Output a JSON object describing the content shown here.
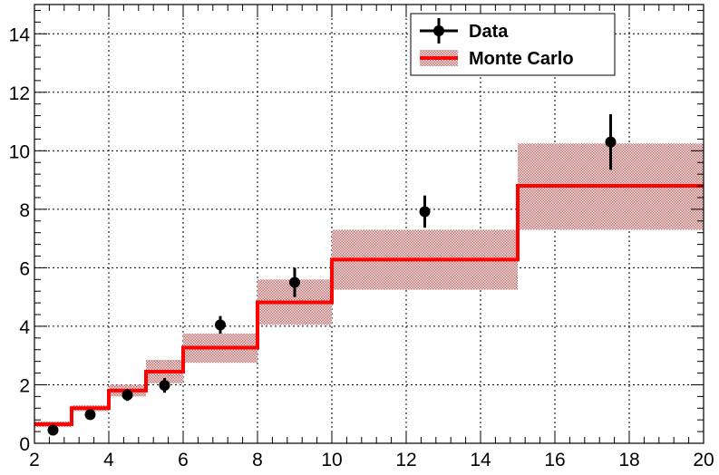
{
  "chart_data": {
    "type": "line",
    "title": "",
    "xlabel": "",
    "ylabel": "",
    "xlim": [
      2,
      20
    ],
    "ylim": [
      0,
      15
    ],
    "x_ticks": [
      2,
      4,
      6,
      8,
      10,
      12,
      14,
      16,
      18,
      20
    ],
    "y_ticks": [
      0,
      2,
      4,
      6,
      8,
      10,
      12,
      14
    ],
    "grid": true,
    "legend_position": "top-right",
    "series": [
      {
        "name": "Data",
        "kind": "points-with-errors",
        "color": "#000000",
        "points": [
          {
            "x": 2.5,
            "y": 0.45,
            "err": 0.15
          },
          {
            "x": 3.5,
            "y": 0.98,
            "err": 0.15
          },
          {
            "x": 4.5,
            "y": 1.65,
            "err": 0.2
          },
          {
            "x": 5.5,
            "y": 1.98,
            "err": 0.25
          },
          {
            "x": 7.0,
            "y": 4.05,
            "err": 0.3
          },
          {
            "x": 9.0,
            "y": 5.5,
            "err": 0.5
          },
          {
            "x": 12.5,
            "y": 7.92,
            "err": 0.55
          },
          {
            "x": 17.5,
            "y": 10.3,
            "err": 0.95
          }
        ]
      },
      {
        "name": "Monte Carlo",
        "kind": "step-histogram-with-band",
        "color": "#ff0000",
        "band_color": "#b06060",
        "bins": [
          {
            "lo": 2,
            "hi": 3,
            "value": 0.65,
            "band_lo": 0.55,
            "band_hi": 0.75
          },
          {
            "lo": 3,
            "hi": 4,
            "value": 1.2,
            "band_lo": 1.1,
            "band_hi": 1.3
          },
          {
            "lo": 4,
            "hi": 5,
            "value": 1.8,
            "band_lo": 1.6,
            "band_hi": 2.0
          },
          {
            "lo": 5,
            "hi": 6,
            "value": 2.45,
            "band_lo": 2.05,
            "band_hi": 2.85
          },
          {
            "lo": 6,
            "hi": 8,
            "value": 3.27,
            "band_lo": 2.75,
            "band_hi": 3.75
          },
          {
            "lo": 8,
            "hi": 10,
            "value": 4.82,
            "band_lo": 4.05,
            "band_hi": 5.6
          },
          {
            "lo": 10,
            "hi": 15,
            "value": 6.28,
            "band_lo": 5.25,
            "band_hi": 7.3
          },
          {
            "lo": 15,
            "hi": 20,
            "value": 8.8,
            "band_lo": 7.3,
            "band_hi": 10.25
          }
        ]
      }
    ]
  }
}
